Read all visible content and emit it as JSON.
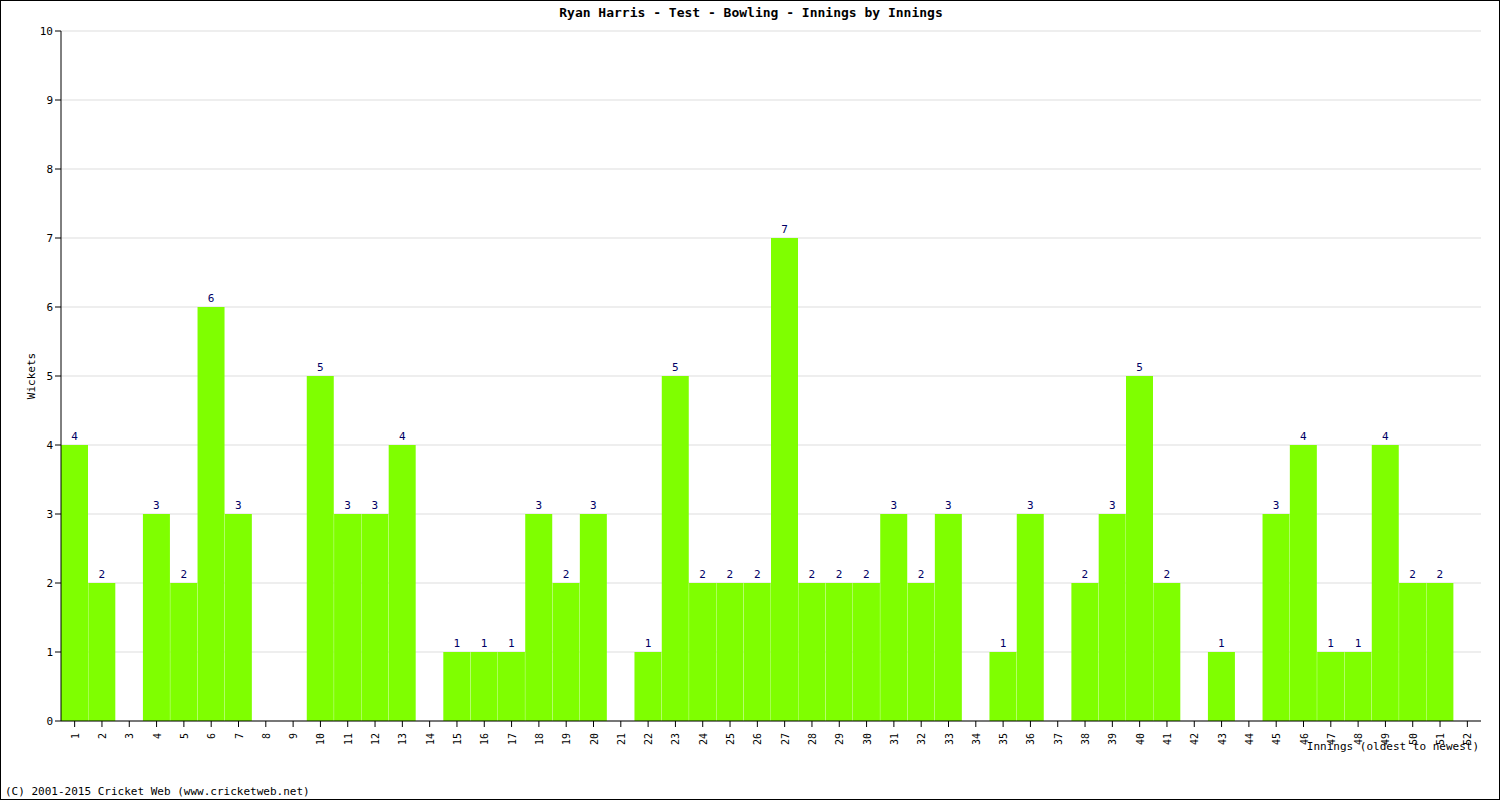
{
  "chart_data": {
    "type": "bar",
    "title": "Ryan Harris - Test - Bowling - Innings by Innings",
    "x_label": "Innings (oldest to newest)",
    "y_label": "Wickets",
    "footer": "(C) 2001-2015 Cricket Web (www.cricketweb.net)",
    "categories": [
      "1",
      "2",
      "3",
      "4",
      "5",
      "6",
      "7",
      "8",
      "9",
      "10",
      "11",
      "12",
      "13",
      "14",
      "15",
      "16",
      "17",
      "18",
      "19",
      "20",
      "21",
      "22",
      "23",
      "24",
      "25",
      "26",
      "27",
      "28",
      "29",
      "30",
      "31",
      "32",
      "33",
      "34",
      "35",
      "36",
      "37",
      "38",
      "39",
      "40",
      "41",
      "42",
      "43",
      "44",
      "45",
      "46",
      "47",
      "48",
      "49",
      "50",
      "51",
      "52"
    ],
    "values": [
      4,
      2,
      0,
      3,
      2,
      6,
      3,
      0,
      0,
      5,
      3,
      3,
      4,
      0,
      1,
      1,
      1,
      3,
      2,
      3,
      0,
      1,
      5,
      2,
      2,
      2,
      7,
      2,
      2,
      2,
      3,
      2,
      3,
      0,
      1,
      3,
      0,
      2,
      3,
      5,
      2,
      0,
      1,
      0,
      3,
      4,
      1,
      1,
      4,
      2,
      2,
      0
    ],
    "color": "#7fff00",
    "ylim": [
      0,
      10
    ],
    "yticks": [
      0,
      1,
      2,
      3,
      4,
      5,
      6,
      7,
      8,
      9,
      10
    ],
    "grid": true,
    "data_labels": true
  }
}
